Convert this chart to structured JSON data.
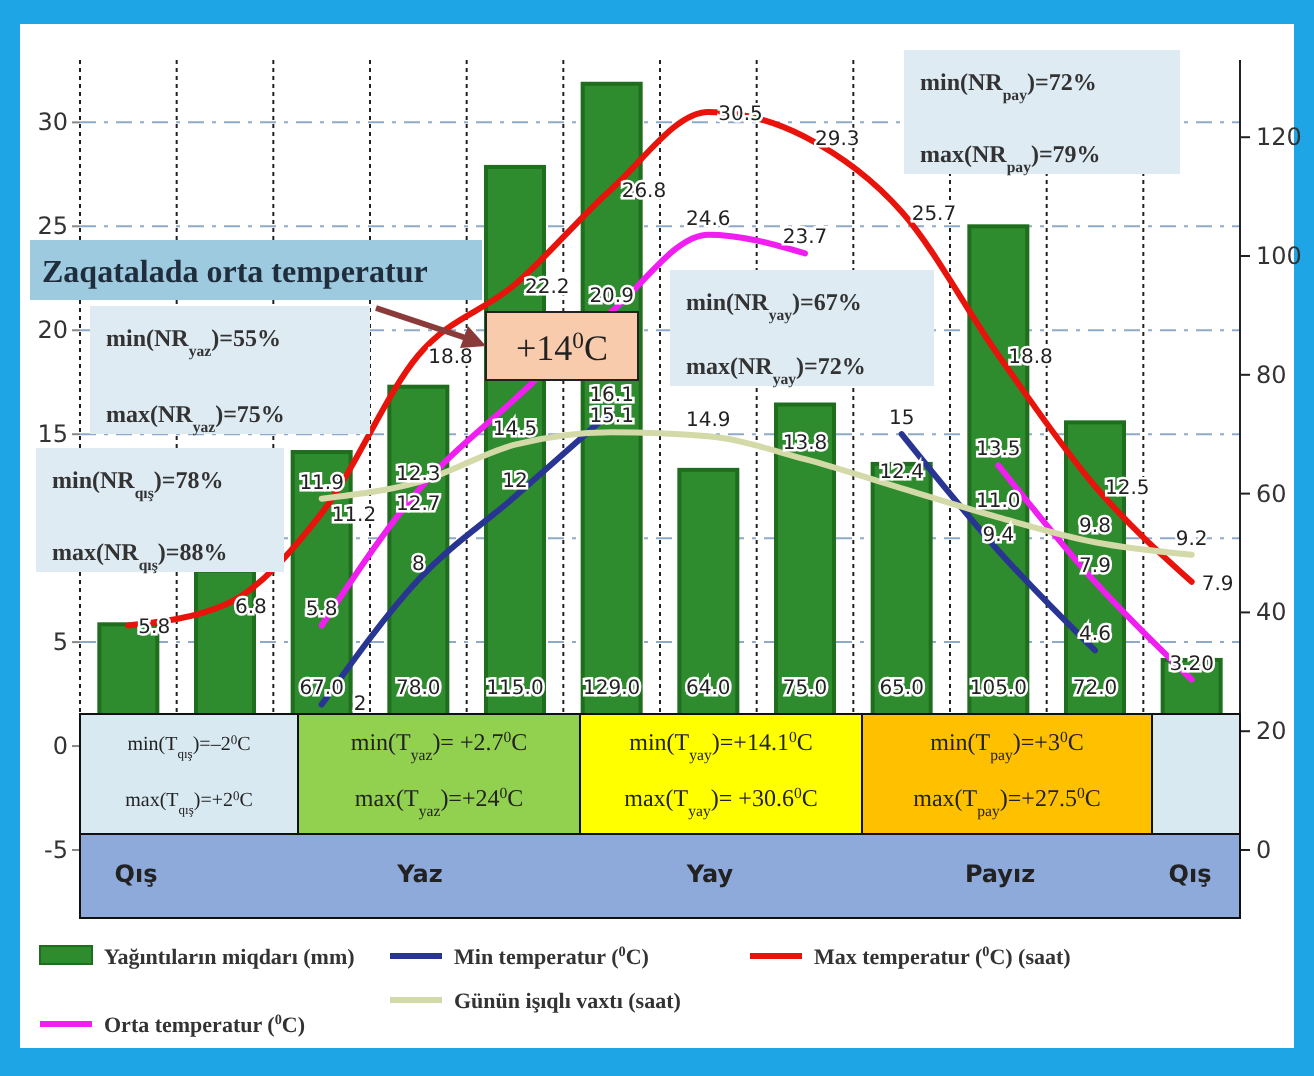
{
  "chart_data": {
    "type": "bar",
    "categories": [
      null,
      null,
      null,
      null,
      null,
      null,
      null,
      null,
      null,
      null,
      null,
      null
    ],
    "ylim": [
      -5,
      33
    ],
    "yticks": [
      -5,
      0,
      5,
      {
        "value": 10,
        "label": null
      },
      15,
      20,
      25,
      30
    ],
    "y2lim": [
      0,
      133
    ],
    "y2ticks": [
      0,
      20,
      40,
      60,
      80,
      100,
      120
    ],
    "grid": true,
    "legend": "bottom",
    "tick_labels": "y",
    "series": [
      {
        "name": "Yağıntıların miqdarı (mm)",
        "axis": "y2",
        "color": "#2e8b2e",
        "values": [
          38,
          47,
          67,
          78,
          115,
          129,
          64,
          75,
          65,
          105,
          72,
          32
        ],
        "value_labels": [
          null,
          null,
          "67.0",
          "78.0",
          "115.0",
          "129.0",
          "64.0",
          "75.0",
          "65.0",
          "105.0",
          "72.0",
          null
        ]
      },
      {
        "name": "Min temperatur ($^{0}$C)",
        "type": "line",
        "color": "#283593",
        "values": [
          null,
          null,
          2,
          8,
          12,
          16.1,
          null,
          null,
          15,
          9.4,
          4.6,
          null
        ],
        "value_labels": [
          null,
          null,
          "2",
          "8",
          "12",
          "16.1",
          null,
          null,
          "15",
          "9.4",
          "4.6",
          null
        ]
      },
      {
        "name": "Max temperatur ($^{0}$C) (saat)",
        "type": "line",
        "color": "#e8140c",
        "values": [
          5.8,
          6.8,
          11.2,
          18.8,
          22.2,
          26.8,
          30.5,
          29.3,
          25.7,
          18.8,
          12.5,
          7.9
        ],
        "value_labels": [
          "5.8",
          "6.8",
          "11.2",
          "18.8",
          "22.2",
          "26.8",
          "30.5",
          "29.3",
          "25.7",
          "18.8",
          "12.5",
          "7.9"
        ]
      },
      {
        "name": "Orta temperatur ($^{0}$C)",
        "type": "line",
        "color": "#f01ef0",
        "values": [
          null,
          null,
          5.8,
          12.3,
          16.7,
          20.9,
          24.6,
          23.7,
          null,
          13.5,
          7.9,
          3.2
        ],
        "value_labels": [
          null,
          null,
          "5.8",
          "12.3",
          null,
          "20.9",
          "24.6",
          "23.7",
          null,
          "13.5",
          "7.9",
          "3.20"
        ]
      },
      {
        "name": "Günün işıqlı vaxtı (saat)",
        "type": "line",
        "color": "#d4d9a8",
        "values": [
          null,
          null,
          11.9,
          12.7,
          14.5,
          15.1,
          14.9,
          13.8,
          12.4,
          11.0,
          9.8,
          9.2
        ],
        "value_labels": [
          null,
          null,
          "11.9",
          "12.7",
          "14.5",
          "15.1",
          "14.9",
          "13.8",
          "12.4",
          "11.0",
          "9.8",
          "9.2"
        ]
      }
    ],
    "annotations": [
      "Zaqatalada orta temperatur",
      "+14$^{0}$C",
      "min(NR$_{yaz}$)=55%",
      "max(NR$_{yaz}$)=75%",
      "min(NR$_{qış}$)=78%",
      "max(NR$_{qış}$)=88%",
      "min(NR$_{yay}$)=67%",
      "max(NR$_{yay}$)=72%",
      "min(NR$_{pay}$)=72%",
      "max(NR$_{pay}$)=79%",
      "min(T$_{qış}$)=–2$^{0}$C",
      "max(T$_{qış}$)=+2$^{0}$C",
      "min(T$_{yaz}$)= +2.7$^{0}$C",
      "max(T$_{yaz}$)=+24$^{0}$C",
      "min(T$_{yay}$)=+14.1$^{0}$C",
      "max(T$_{yay}$)= +30.6$^{0}$C",
      "min(T$_{pay}$)=+3$^{0}$C",
      "max(T$_{pay}$)=+27.5$^{0}$C",
      "Qış",
      "Yaz",
      "Yay",
      "Payız",
      "Qış"
    ]
  }
}
